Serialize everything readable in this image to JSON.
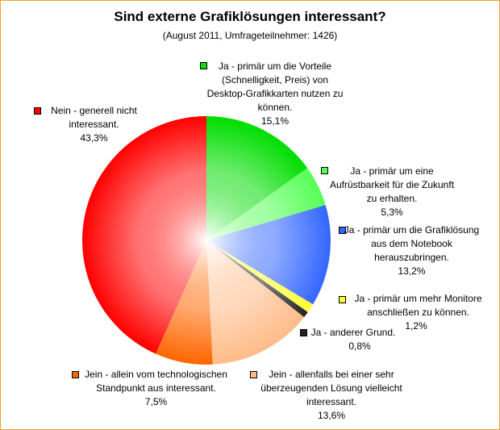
{
  "chart_data": {
    "type": "pie",
    "title": "Sind externe Grafiklösungen interessant?",
    "subtitle": "(August 2011, Umfrageteilnehmer: 1426)",
    "categories": [
      "Ja - primär um die Vorteile (Schnelligkeit, Preis) von Desktop-Grafikkarten nutzen zu können.",
      "Ja - primär um eine Aufrüstbarkeit für die Zukunft zu erhalten.",
      "Ja - primär um die Grafiklösung aus dem Notebook herauszubringen.",
      "Ja - primär um mehr Monitore anschließen zu können.",
      "Ja - anderer Grund.",
      "Jein - allenfalls bei einer sehr überzeugenden Lösung vielleicht interessant.",
      "Jein - allein vom technologischen Standpunkt aus interessant.",
      "Nein - generell nicht interessant."
    ],
    "values": [
      15.1,
      5.3,
      13.2,
      1.2,
      0.8,
      13.6,
      7.5,
      43.3
    ],
    "value_labels": [
      "15,1%",
      "5,3%",
      "13,2%",
      "1,2%",
      "0,8%",
      "13,6%",
      "7,5%",
      "43,3%"
    ],
    "colors": [
      "#00dd00",
      "#55ff55",
      "#3366ff",
      "#ffff33",
      "#222222",
      "#ffbb88",
      "#ff6600",
      "#ff0000"
    ]
  }
}
